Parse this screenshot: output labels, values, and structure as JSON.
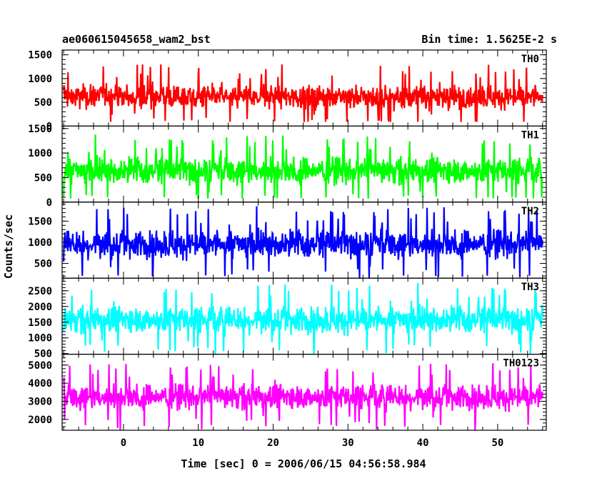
{
  "chart_data": {
    "type": "line",
    "title_left": "ae060615045658_wam2_bst",
    "title_right": "Bin time: 1.5625E-2 s",
    "xlabel": "Time [sec] 0 = 2006/06/15 04:56:58.984",
    "ylabel": "Counts/sec",
    "xlim": [
      -8.2,
      56.5
    ],
    "data_xrange": [
      -8.0,
      56.0
    ],
    "x_ticks": [
      0,
      10,
      20,
      30,
      40,
      50
    ],
    "x_tick_labels": [
      "0",
      "10",
      "20",
      "30",
      "40",
      "50"
    ],
    "panels": [
      {
        "label": "TH0",
        "color": "#ff0000",
        "ylim": [
          0,
          1600
        ],
        "y_ticks": [
          0,
          500,
          1000,
          1500
        ],
        "y_tick_labels": [
          "0",
          "500",
          "1000",
          "1500"
        ],
        "mean": 620,
        "noise": 170,
        "min_typ": 120,
        "max_typ": 1550
      },
      {
        "label": "TH1",
        "color": "#00ff00",
        "ylim": [
          0,
          1550
        ],
        "y_ticks": [
          0,
          500,
          1000,
          1500
        ],
        "y_tick_labels": [
          "0",
          "500",
          "1000",
          "1500"
        ],
        "mean": 640,
        "noise": 190,
        "min_typ": 100,
        "max_typ": 1450
      },
      {
        "label": "TH2",
        "color": "#0000ff",
        "ylim": [
          150,
          1950
        ],
        "y_ticks": [
          500,
          1000,
          1500
        ],
        "y_tick_labels": [
          "500",
          "1000",
          "1500"
        ],
        "mean": 960,
        "noise": 230,
        "min_typ": 220,
        "max_typ": 1900
      },
      {
        "label": "TH3",
        "color": "#00ffff",
        "ylim": [
          480,
          2900
        ],
        "y_ticks": [
          500,
          1000,
          1500,
          2000,
          2500
        ],
        "y_tick_labels": [
          "500",
          "1000",
          "1500",
          "2000",
          "2500"
        ],
        "mean": 1580,
        "noise": 300,
        "min_typ": 560,
        "max_typ": 2850
      },
      {
        "label": "TH0123",
        "color": "#ff00ff",
        "ylim": [
          1400,
          5600
        ],
        "y_ticks": [
          2000,
          3000,
          4000,
          5000
        ],
        "y_tick_labels": [
          "2000",
          "3000",
          "4000",
          "5000"
        ],
        "mean": 3250,
        "noise": 480,
        "min_typ": 1650,
        "max_typ": 5400
      }
    ]
  }
}
